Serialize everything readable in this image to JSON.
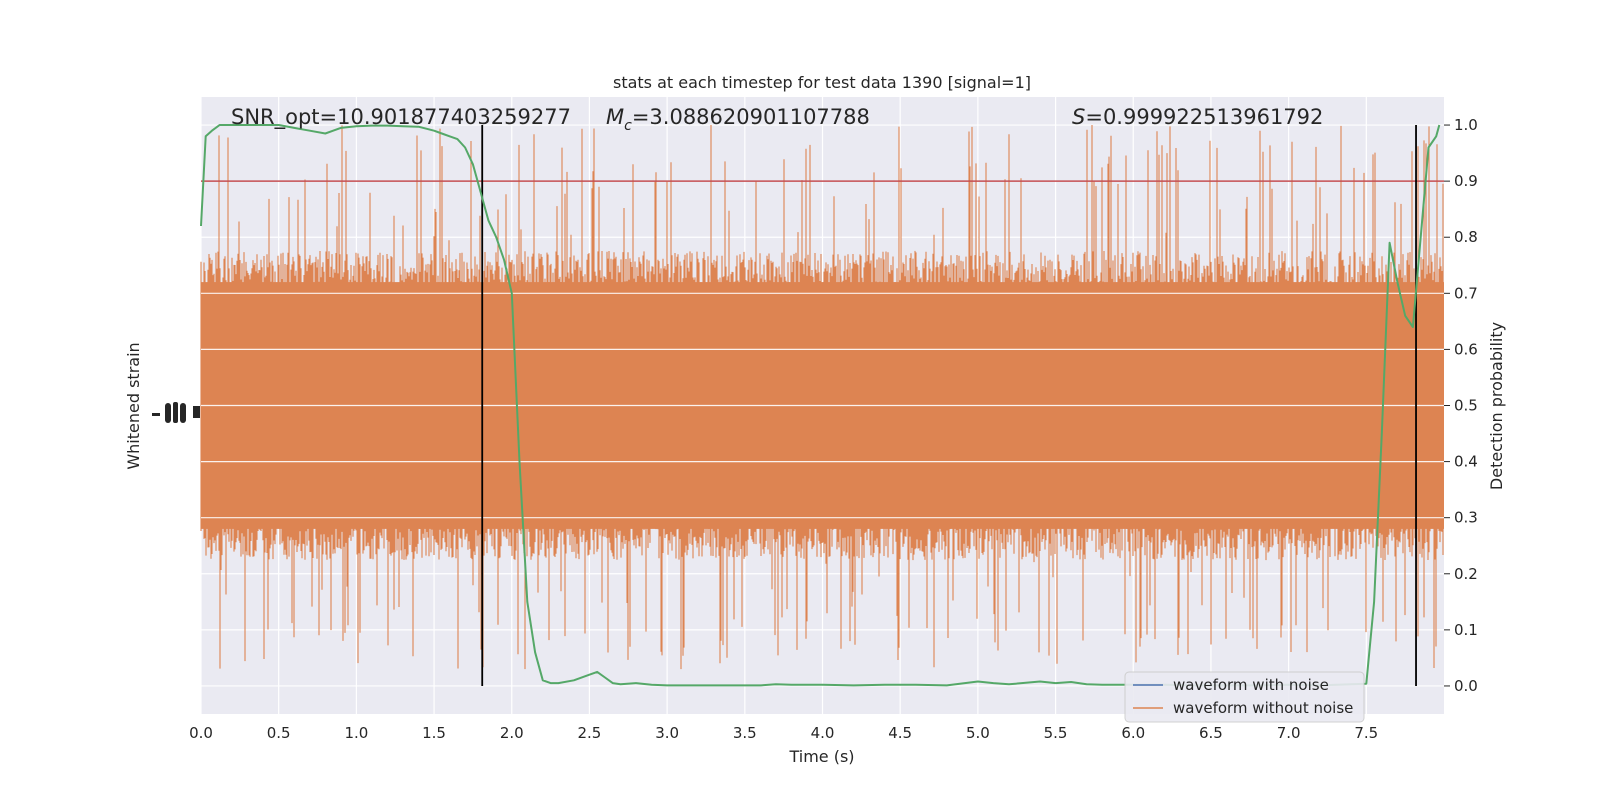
{
  "chart_data": {
    "type": "line",
    "title": "stats at each timestep for test data 1390 [signal=1]",
    "xlabel": "Time (s)",
    "ylabel_left": "Whitened strain",
    "ylabel_right": "Detection probability",
    "xlim": [
      0.0,
      8.0
    ],
    "ylim_right": [
      -0.05,
      1.05
    ],
    "x_ticks": [
      "0.0",
      "0.5",
      "1.0",
      "1.5",
      "2.0",
      "2.5",
      "3.0",
      "3.5",
      "4.0",
      "4.5",
      "5.0",
      "5.5",
      "6.0",
      "6.5",
      "7.0",
      "7.5"
    ],
    "y_right_ticks": [
      "0.0",
      "0.1",
      "0.2",
      "0.3",
      "0.4",
      "0.5",
      "0.6",
      "0.7",
      "0.8",
      "0.9",
      "1.0"
    ],
    "grid": true,
    "annotations": {
      "snr": "SNR_opt=10.901877403259277",
      "mc_symbol": "M",
      "mc_sub": "c",
      "mc_value": "=3.088620901107788",
      "s_symbol": "S",
      "s_value": "=0.999922513961792"
    },
    "threshold": {
      "value": 0.9,
      "color": "#c44e52"
    },
    "vertical_lines": [
      1.81,
      7.82
    ],
    "series": [
      {
        "name": "waveform with noise",
        "color": "#4c72b0",
        "kind": "strain"
      },
      {
        "name": "waveform without noise",
        "color": "#dd8452",
        "kind": "strain",
        "band_center": 0.5,
        "band_typical": [
          0.26,
          0.74
        ],
        "band_extreme": [
          0.03,
          1.0
        ]
      },
      {
        "color": "#55a868",
        "kind": "probability",
        "x": [
          0.0,
          0.03,
          0.07,
          0.12,
          0.2,
          0.3,
          0.4,
          0.5,
          0.6,
          0.7,
          0.8,
          0.85,
          0.9,
          1.0,
          1.1,
          1.2,
          1.3,
          1.4,
          1.5,
          1.55,
          1.6,
          1.65,
          1.7,
          1.75,
          1.8,
          1.85,
          1.9,
          1.95,
          2.0,
          2.05,
          2.1,
          2.15,
          2.2,
          2.25,
          2.3,
          2.4,
          2.5,
          2.55,
          2.6,
          2.65,
          2.7,
          2.8,
          2.9,
          3.0,
          3.2,
          3.4,
          3.6,
          3.7,
          3.8,
          4.0,
          4.2,
          4.4,
          4.6,
          4.8,
          5.0,
          5.1,
          5.2,
          5.4,
          5.5,
          5.6,
          5.7,
          5.8,
          6.0,
          6.2,
          6.4,
          6.6,
          6.8,
          7.0,
          7.2,
          7.4,
          7.5,
          7.55,
          7.6,
          7.65,
          7.7,
          7.75,
          7.8,
          7.85,
          7.9,
          7.95,
          7.97
        ],
        "y": [
          0.82,
          0.98,
          0.99,
          1.0,
          1.0,
          1.0,
          1.0,
          1.0,
          0.995,
          0.99,
          0.985,
          0.99,
          0.995,
          0.998,
          0.999,
          0.999,
          0.998,
          0.997,
          0.99,
          0.985,
          0.98,
          0.975,
          0.96,
          0.93,
          0.88,
          0.83,
          0.8,
          0.76,
          0.7,
          0.4,
          0.15,
          0.06,
          0.01,
          0.005,
          0.005,
          0.01,
          0.02,
          0.025,
          0.015,
          0.005,
          0.003,
          0.005,
          0.002,
          0.001,
          0.001,
          0.001,
          0.001,
          0.003,
          0.002,
          0.002,
          0.001,
          0.002,
          0.002,
          0.001,
          0.008,
          0.005,
          0.003,
          0.008,
          0.005,
          0.007,
          0.003,
          0.002,
          0.002,
          0.002,
          0.001,
          0.001,
          0.001,
          0.002,
          0.001,
          0.003,
          0.004,
          0.15,
          0.45,
          0.79,
          0.72,
          0.66,
          0.64,
          0.8,
          0.96,
          0.98,
          1.0
        ]
      }
    ],
    "legend_position": "lower-right"
  }
}
